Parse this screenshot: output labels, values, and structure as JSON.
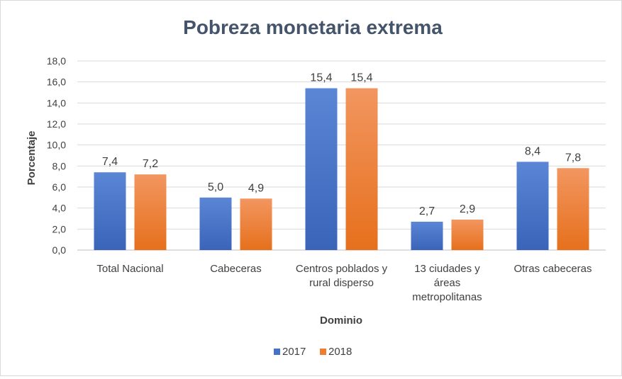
{
  "chart_data": {
    "type": "bar",
    "title": "Pobreza monetaria extrema",
    "xlabel": "Dominio",
    "ylabel": "Porcentaje",
    "ylim": [
      0,
      18
    ],
    "y_ticks": [
      "0,0",
      "2,0",
      "4,0",
      "6,0",
      "8,0",
      "10,0",
      "12,0",
      "14,0",
      "16,0",
      "18,0"
    ],
    "categories": [
      "Total Nacional",
      "Cabeceras",
      "Centros poblados y rural disperso",
      "13 ciudades y áreas metropolitanas",
      "Otras cabeceras"
    ],
    "category_lines": [
      [
        "Total Nacional"
      ],
      [
        "Cabeceras"
      ],
      [
        "Centros poblados y",
        "rural disperso"
      ],
      [
        "13 ciudades y",
        "áreas",
        "metropolitanas"
      ],
      [
        "Otras cabeceras"
      ]
    ],
    "series": [
      {
        "name": "2017",
        "color": "#4472c4",
        "values": [
          7.4,
          5.0,
          15.4,
          2.7,
          8.4
        ],
        "labels": [
          "7,4",
          "5,0",
          "15,4",
          "2,7",
          "8,4"
        ]
      },
      {
        "name": "2018",
        "color": "#ed7d31",
        "values": [
          7.2,
          4.9,
          15.4,
          2.9,
          7.8
        ],
        "labels": [
          "7,2",
          "4,9",
          "15,4",
          "2,9",
          "7,8"
        ]
      }
    ],
    "grid": true,
    "legend_position": "bottom"
  }
}
